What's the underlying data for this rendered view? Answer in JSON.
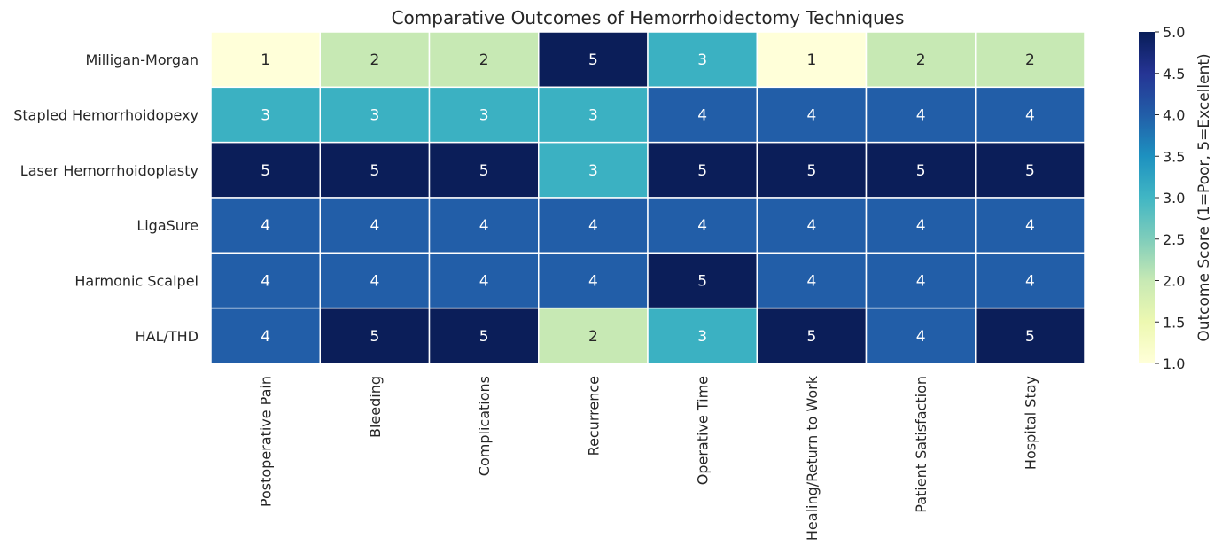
{
  "chart_data": {
    "type": "heatmap",
    "title": "Comparative Outcomes of Hemorrhoidectomy Techniques",
    "rows": [
      "Milligan-Morgan",
      "Stapled Hemorrhoidopexy",
      "Laser Hemorrhoidoplasty",
      "LigaSure",
      "Harmonic Scalpel",
      "HAL/THD"
    ],
    "columns": [
      "Postoperative Pain",
      "Bleeding",
      "Complications",
      "Recurrence",
      "Operative Time",
      "Healing/Return to Work",
      "Patient Satisfaction",
      "Hospital Stay"
    ],
    "values": [
      [
        1,
        2,
        2,
        5,
        3,
        1,
        2,
        2
      ],
      [
        3,
        3,
        3,
        3,
        4,
        4,
        4,
        4
      ],
      [
        5,
        5,
        5,
        3,
        5,
        5,
        5,
        5
      ],
      [
        4,
        4,
        4,
        4,
        4,
        4,
        4,
        4
      ],
      [
        4,
        4,
        4,
        4,
        5,
        4,
        4,
        4
      ],
      [
        4,
        5,
        5,
        2,
        3,
        5,
        4,
        5
      ]
    ],
    "colorbar": {
      "label": "Outcome Score (1=Poor, 5=Excellent)",
      "min": 1.0,
      "max": 5.0,
      "ticks": [
        "1.0",
        "1.5",
        "2.0",
        "2.5",
        "3.0",
        "3.5",
        "4.0",
        "4.5",
        "5.0"
      ],
      "colormap": "YlGnBu"
    },
    "colors": {
      "1": "#ffffd9",
      "2": "#c7e9b4",
      "3": "#3bb1c2",
      "4": "#225ea8",
      "5": "#0b1e59"
    }
  }
}
